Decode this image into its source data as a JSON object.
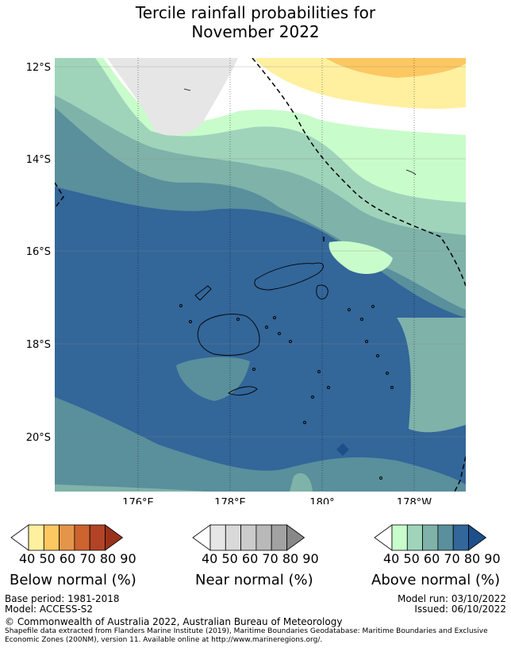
{
  "title": {
    "line1": "Tercile rainfall probabilities for",
    "line2": "November 2022"
  },
  "map": {
    "lat_labels": [
      "12°S",
      "14°S",
      "16°S",
      "18°S",
      "20°S"
    ],
    "lon_labels": [
      "176°E",
      "178°E",
      "180°",
      "178°W"
    ],
    "gridlines": true,
    "region": "Fiji"
  },
  "legends": [
    {
      "label": "Below normal (%)",
      "ticks": [
        "40",
        "50",
        "60",
        "70",
        "80",
        "90"
      ],
      "colors": [
        "#ffffff",
        "#fff0a0",
        "#fdc762",
        "#e5954a",
        "#cd632f",
        "#b24327",
        "#9a321b"
      ]
    },
    {
      "label": "Near normal (%)",
      "ticks": [
        "40",
        "50",
        "60",
        "70",
        "80",
        "90"
      ],
      "colors": [
        "#ffffff",
        "#e6e6e6",
        "#d9d9d9",
        "#cbcbcb",
        "#b9b9b9",
        "#a2a2a2",
        "#888888"
      ]
    },
    {
      "label": "Above normal (%)",
      "ticks": [
        "40",
        "50",
        "60",
        "70",
        "80",
        "90"
      ],
      "colors": [
        "#ffffff",
        "#c9fccb",
        "#9fd4bb",
        "#7fb2a9",
        "#5a8f9c",
        "#336699",
        "#1d4f8b"
      ]
    }
  ],
  "footer": {
    "base_period": "Base period: 1981-2018",
    "model": "Model: ACCESS-S2",
    "model_run": "Model run: 03/10/2022",
    "issued": "Issued: 06/10/2022",
    "copyright": "© Commonwealth of Australia 2022, Australian Bureau of Meteorology",
    "shapefile_line1": "Shapefile data extracted from Flanders Marine Institute (2019), Maritime Boundaries Geodatabase: Maritime Boundaries and Exclusive",
    "shapefile_line2": "Economic Zones (200NM), version 11. Available online at http://www.marineregions.org/."
  }
}
